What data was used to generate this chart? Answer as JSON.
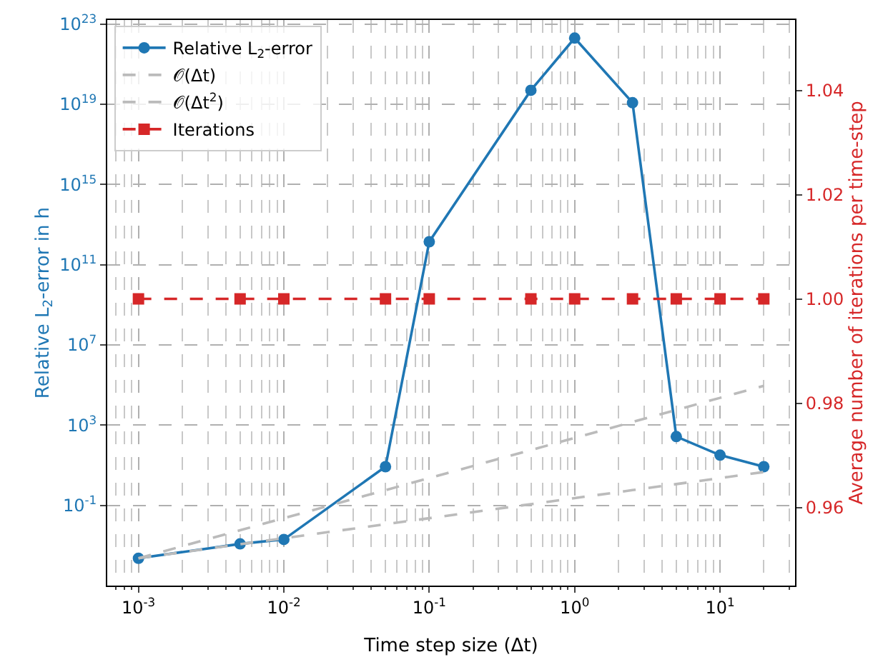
{
  "chart_data": {
    "type": "line",
    "xlabel": "Time step size (Δt)",
    "ylabel": "Relative L$_{2}$-error in h",
    "y2label": "Average number of iterations per time-step",
    "x": [
      0.001,
      0.005,
      0.01,
      0.05,
      0.1,
      0.5,
      1,
      2.5,
      5,
      10,
      20
    ],
    "series": [
      {
        "name": "Relative L$_{2}$-error",
        "color": "#1f77b4",
        "marker": "circle",
        "line_style": "solid",
        "values": [
          0.00023,
          0.0012,
          0.002,
          8.5,
          1400000000000.0,
          5e+19,
          2e+22,
          1.2e+19,
          270,
          32,
          8.5
        ]
      },
      {
        "name": "𝒪(Δt)",
        "color": "#bbbbbb",
        "marker": "none",
        "line_style": "dashed",
        "values": [
          0.00023,
          0.00115,
          0.0023,
          0.0115,
          0.023,
          0.115,
          0.23,
          0.575,
          1.15,
          2.3,
          4.6
        ]
      },
      {
        "name": "𝒪(Δt$^{2}$)",
        "color": "#bbbbbb",
        "marker": "none",
        "line_style": "dashed",
        "values": [
          0.00023,
          0.00575,
          0.023,
          0.575,
          2.3,
          57.5,
          230,
          1437.5,
          5750,
          23000,
          92000
        ]
      },
      {
        "name": "Iterations",
        "color": "#d62728",
        "marker": "square",
        "line_style": "dashed",
        "axis": "y2",
        "values": [
          1,
          1,
          1,
          1,
          1,
          1,
          1,
          1,
          1,
          1,
          1
        ]
      }
    ],
    "log": "xy",
    "xlim": [
      0.00061,
      32.8
    ],
    "ylim": [
      1e-05,
      1.6e+23
    ],
    "y2lim": [
      0.945,
      1.0535
    ],
    "xticks": [
      {
        "value": 0.001,
        "label": "10$^{-3}$"
      },
      {
        "value": 0.01,
        "label": "10$^{-2}$"
      },
      {
        "value": 0.1,
        "label": "10$^{-1}$"
      },
      {
        "value": 1,
        "label": "10$^{0}$"
      },
      {
        "value": 10,
        "label": "10$^{1}$"
      }
    ],
    "yticks": [
      {
        "value": 0.1,
        "label": "10$^{-1}$"
      },
      {
        "value": 1000,
        "label": "10$^{3}$"
      },
      {
        "value": 10000000.0,
        "label": "10$^{7}$"
      },
      {
        "value": 100000000000.0,
        "label": "10$^{11}$"
      },
      {
        "value": 1000000000000000.0,
        "label": "10$^{15}$"
      },
      {
        "value": 1e+19,
        "label": "10$^{19}$"
      },
      {
        "value": 1e+23,
        "label": "10$^{23}$"
      }
    ],
    "y2ticks": [
      {
        "value": 0.96,
        "label": "0.96"
      },
      {
        "value": 0.98,
        "label": "0.98"
      },
      {
        "value": 1.0,
        "label": "1.00"
      },
      {
        "value": 1.02,
        "label": "1.02"
      },
      {
        "value": 1.04,
        "label": "1.04"
      }
    ],
    "grid": true,
    "legend": "top left"
  }
}
